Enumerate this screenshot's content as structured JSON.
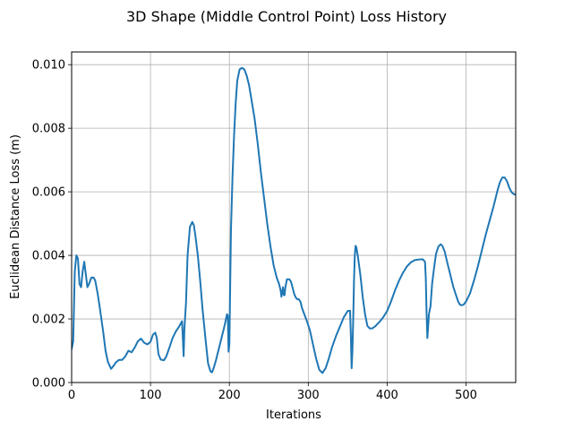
{
  "chart_data": {
    "type": "line",
    "title": "3D Shape (Middle Control Point) Loss History",
    "xlabel": "Iterations",
    "ylabel": "Euclidean Distance Loss (m)",
    "xlim": [
      0,
      563
    ],
    "ylim": [
      0,
      0.0104
    ],
    "xticks": [
      0,
      100,
      200,
      300,
      400,
      500
    ],
    "xtick_labels": [
      "0",
      "100",
      "200",
      "300",
      "400",
      "500"
    ],
    "yticks": [
      0,
      0.002,
      0.004,
      0.006,
      0.008,
      0.01
    ],
    "ytick_labels": [
      "0.000",
      "0.002",
      "0.004",
      "0.006",
      "0.008",
      "0.010"
    ],
    "grid": true,
    "series": [
      {
        "color": "#1f77b4",
        "x": [
          0,
          2,
          4,
          6,
          8,
          10,
          12,
          14,
          16,
          18,
          20,
          22,
          25,
          28,
          30,
          33,
          36,
          40,
          43,
          46,
          50,
          53,
          56,
          60,
          64,
          68,
          72,
          76,
          80,
          84,
          88,
          92,
          96,
          100,
          103,
          106,
          108,
          110,
          113,
          117,
          120,
          124,
          128,
          132,
          136,
          140,
          141,
          142,
          143,
          145,
          147,
          150,
          153,
          155,
          157,
          160,
          163,
          166,
          170,
          173,
          176,
          178,
          180,
          183,
          186,
          190,
          194,
          197,
          198,
          199,
          200,
          201,
          202,
          204,
          206,
          208,
          210,
          213,
          216,
          219,
          222,
          225,
          228,
          232,
          236,
          240,
          244,
          248,
          252,
          256,
          260,
          263,
          265,
          266,
          267,
          268,
          269,
          270,
          271,
          273,
          276,
          278,
          280,
          282,
          284,
          286,
          288,
          290,
          292,
          295,
          298,
          302,
          306,
          310,
          314,
          318,
          322,
          326,
          330,
          335,
          340,
          345,
          350,
          353,
          354,
          355,
          356,
          357,
          358,
          359,
          360,
          361,
          363,
          366,
          369,
          372,
          375,
          378,
          381,
          385,
          390,
          395,
          400,
          405,
          410,
          415,
          420,
          425,
          430,
          435,
          440,
          445,
          448,
          449,
          450,
          451,
          452,
          453,
          455,
          457,
          460,
          462,
          465,
          468,
          470,
          473,
          476,
          480,
          484,
          488,
          490,
          492,
          494,
          497,
          500,
          505,
          510,
          515,
          520,
          525,
          530,
          535,
          540,
          543,
          546,
          549,
          552,
          555,
          558,
          561,
          563
        ],
        "y": [
          0.00105,
          0.0013,
          0.0035,
          0.004,
          0.0039,
          0.0031,
          0.003,
          0.0035,
          0.0038,
          0.0034,
          0.003,
          0.0031,
          0.0033,
          0.0033,
          0.0032,
          0.0028,
          0.0023,
          0.0016,
          0.001,
          0.00065,
          0.00043,
          0.00052,
          0.00063,
          0.00071,
          0.00071,
          0.00082,
          0.001,
          0.00095,
          0.0011,
          0.0013,
          0.00138,
          0.00125,
          0.0012,
          0.00128,
          0.0015,
          0.00157,
          0.0014,
          0.0009,
          0.00072,
          0.0007,
          0.00082,
          0.0011,
          0.0014,
          0.0016,
          0.00175,
          0.00193,
          0.0014,
          0.00083,
          0.0017,
          0.0025,
          0.004,
          0.0049,
          0.00505,
          0.00495,
          0.0046,
          0.004,
          0.0032,
          0.0023,
          0.0013,
          0.0006,
          0.00035,
          0.00032,
          0.00045,
          0.0007,
          0.001,
          0.0014,
          0.0018,
          0.00215,
          0.0021,
          0.00097,
          0.0012,
          0.003,
          0.0048,
          0.0065,
          0.0078,
          0.0088,
          0.0095,
          0.00985,
          0.0099,
          0.00985,
          0.00965,
          0.00935,
          0.0089,
          0.0083,
          0.0075,
          0.0066,
          0.0058,
          0.005,
          0.0043,
          0.0037,
          0.0033,
          0.0031,
          0.0029,
          0.0027,
          0.00285,
          0.003,
          0.00275,
          0.00275,
          0.003,
          0.00325,
          0.00325,
          0.00318,
          0.003,
          0.0028,
          0.00268,
          0.00262,
          0.00262,
          0.00255,
          0.00235,
          0.00215,
          0.00195,
          0.00165,
          0.0012,
          0.00075,
          0.0004,
          0.0003,
          0.00045,
          0.00075,
          0.0011,
          0.00145,
          0.00175,
          0.00205,
          0.00225,
          0.00226,
          0.0015,
          0.00045,
          0.001,
          0.002,
          0.0032,
          0.004,
          0.0043,
          0.00425,
          0.00395,
          0.0034,
          0.0027,
          0.00215,
          0.00178,
          0.0017,
          0.0017,
          0.00177,
          0.0019,
          0.00205,
          0.00225,
          0.00255,
          0.0029,
          0.0032,
          0.00345,
          0.00365,
          0.00378,
          0.00385,
          0.00387,
          0.00388,
          0.0038,
          0.0033,
          0.0022,
          0.0014,
          0.00175,
          0.00215,
          0.0024,
          0.0031,
          0.0037,
          0.00405,
          0.00428,
          0.00435,
          0.0043,
          0.00412,
          0.0038,
          0.0034,
          0.003,
          0.0027,
          0.00255,
          0.00246,
          0.00243,
          0.00245,
          0.00255,
          0.0028,
          0.0032,
          0.00365,
          0.00415,
          0.00465,
          0.0051,
          0.00555,
          0.00605,
          0.0063,
          0.00645,
          0.00645,
          0.00633,
          0.00612,
          0.00598,
          0.00592,
          0.00592
        ]
      }
    ]
  }
}
